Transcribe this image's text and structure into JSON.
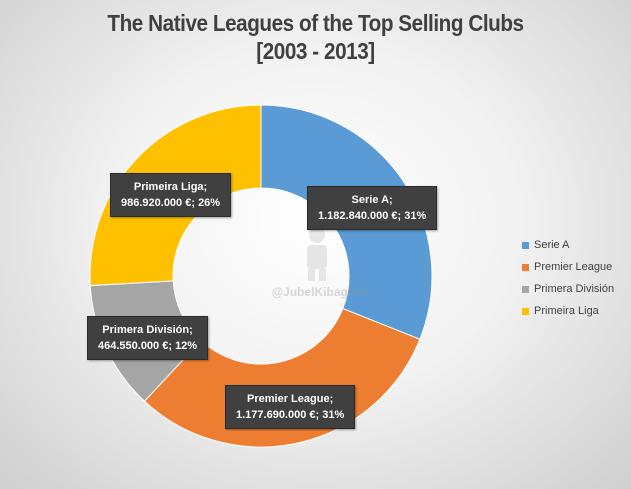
{
  "chart_data": {
    "type": "pie",
    "title": "The Native Leagues of the Top Selling Clubs",
    "subtitle": "[2003 - 2013]",
    "categories": [
      "Serie A",
      "Premier League",
      "Primera División",
      "Primeira Liga"
    ],
    "values": [
      1182840000,
      1177690000,
      464550000,
      986920000
    ],
    "colors": [
      "#5B9BD5",
      "#ED7D31",
      "#A5A5A5",
      "#FFC000"
    ],
    "donut": true,
    "legend_position": "right",
    "data_labels": [
      {
        "name": "Serie A;",
        "value": "1.182.840.000 €; 31%"
      },
      {
        "name": "Premier League;",
        "value": "1.177.690.000 €; 31%"
      },
      {
        "name": "Primera División;",
        "value": "464.550.000 €; 12%"
      },
      {
        "name": "Primeira Liga;",
        "value": "986.920.000 €; 26%"
      }
    ]
  },
  "watermark": {
    "text": "@JubelKibagahê"
  }
}
